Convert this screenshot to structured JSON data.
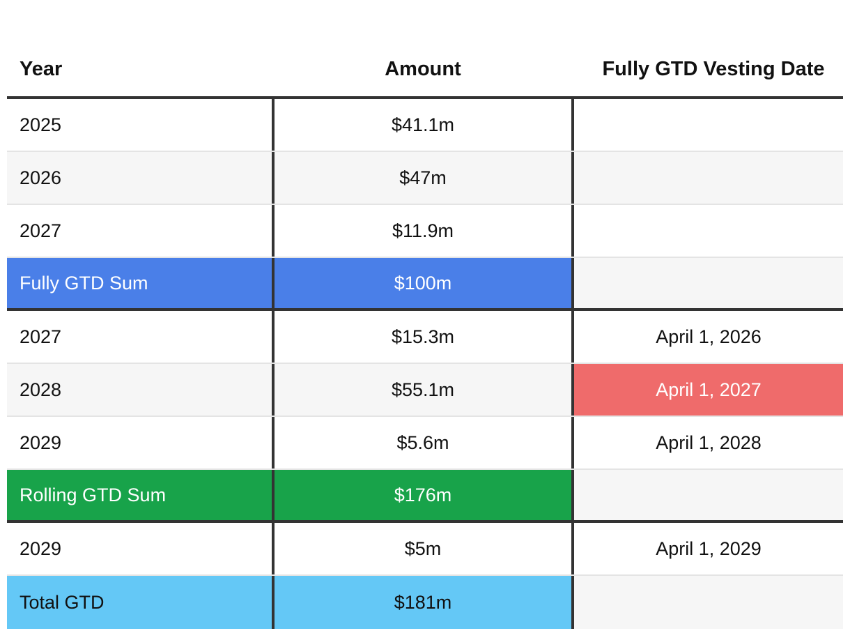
{
  "headers": {
    "year": "Year",
    "amount": "Amount",
    "vesting": "Fully GTD Vesting Date"
  },
  "colors": {
    "fully_gtd_sum": "#4a7fe8",
    "rolling_gtd_sum": "#18a34a",
    "total_gtd": "#64c8f6",
    "highlight_date": "#ef6b6b"
  },
  "rows": [
    {
      "year": "2025",
      "amount": "$41.1m",
      "vesting": ""
    },
    {
      "year": "2026",
      "amount": "$47m",
      "vesting": ""
    },
    {
      "year": "2027",
      "amount": "$11.9m",
      "vesting": ""
    },
    {
      "year": "Fully GTD Sum",
      "amount": "$100m",
      "vesting": ""
    },
    {
      "year": "2027",
      "amount": "$15.3m",
      "vesting": "April 1, 2026"
    },
    {
      "year": "2028",
      "amount": "$55.1m",
      "vesting": "April 1, 2027"
    },
    {
      "year": "2029",
      "amount": "$5.6m",
      "vesting": "April 1, 2028"
    },
    {
      "year": "Rolling GTD Sum",
      "amount": "$176m",
      "vesting": ""
    },
    {
      "year": "2029",
      "amount": "$5m",
      "vesting": "April 1, 2029"
    },
    {
      "year": "Total GTD",
      "amount": "$181m",
      "vesting": ""
    }
  ]
}
